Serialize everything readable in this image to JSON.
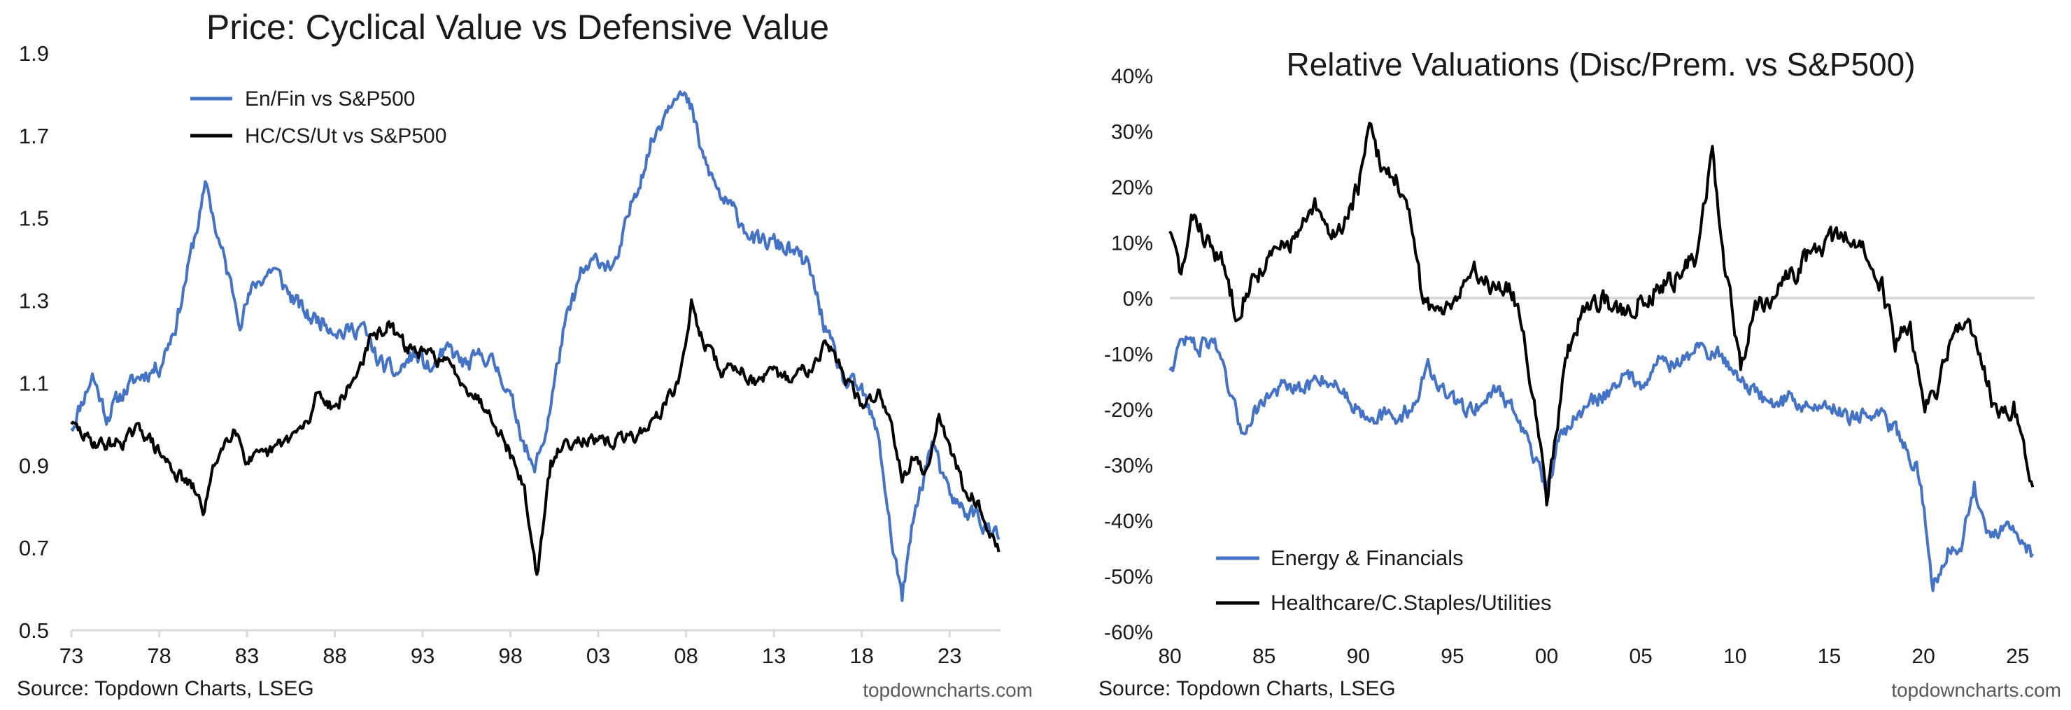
{
  "colors": {
    "blue": "#4472C4",
    "black": "#000000",
    "axis": "#D9D9D9",
    "text": "#1A1A1A",
    "muted": "#595959"
  },
  "chart_data": [
    {
      "type": "line",
      "title": "Price: Cyclical Value vs Defensive Value",
      "xlabel": "",
      "ylabel": "",
      "xlim": [
        1973,
        2025.9
      ],
      "ylim": [
        0.5,
        1.9
      ],
      "yticks": [
        0.5,
        0.7,
        0.9,
        1.1,
        1.3,
        1.5,
        1.7,
        1.9
      ],
      "ytick_labels": [
        "0.5",
        "0.7",
        "0.9",
        "1.1",
        "1.3",
        "1.5",
        "1.7",
        "1.9"
      ],
      "xticks": [
        1973,
        1978,
        1983,
        1988,
        1993,
        1998,
        2003,
        2008,
        2013,
        2018,
        2023
      ],
      "xtick_labels": [
        "73",
        "78",
        "83",
        "88",
        "93",
        "98",
        "03",
        "08",
        "13",
        "18",
        "23"
      ],
      "grid": false,
      "legend_position": "top-left",
      "source": "Source: Topdown Charts, LSEG",
      "watermark": "topdowncharts.com",
      "series": [
        {
          "name": "En/Fin vs S&P500",
          "color": "#4472C4",
          "noise": 0.018,
          "seed": 11,
          "points": [
            [
              1973,
              0.99
            ],
            [
              1974.2,
              1.12
            ],
            [
              1975,
              1.02
            ],
            [
              1976,
              1.08
            ],
            [
              1977,
              1.12
            ],
            [
              1978,
              1.14
            ],
            [
              1979,
              1.25
            ],
            [
              1980,
              1.45
            ],
            [
              1980.7,
              1.58
            ],
            [
              1981.3,
              1.46
            ],
            [
              1982,
              1.35
            ],
            [
              1982.6,
              1.26
            ],
            [
              1983.5,
              1.34
            ],
            [
              1984.5,
              1.38
            ],
            [
              1985.5,
              1.31
            ],
            [
              1986.5,
              1.26
            ],
            [
              1987.5,
              1.25
            ],
            [
              1988.5,
              1.22
            ],
            [
              1989.5,
              1.24
            ],
            [
              1990.5,
              1.15
            ],
            [
              1991.5,
              1.12
            ],
            [
              1992.5,
              1.17
            ],
            [
              1993.5,
              1.13
            ],
            [
              1994.5,
              1.18
            ],
            [
              1995.5,
              1.14
            ],
            [
              1996.5,
              1.17
            ],
            [
              1997.5,
              1.12
            ],
            [
              1998.5,
              1.0
            ],
            [
              1999.3,
              0.88
            ],
            [
              2000,
              0.98
            ],
            [
              2001,
              1.22
            ],
            [
              2002,
              1.36
            ],
            [
              2003,
              1.4
            ],
            [
              2004,
              1.38
            ],
            [
              2005,
              1.55
            ],
            [
              2006,
              1.68
            ],
            [
              2007,
              1.78
            ],
            [
              2007.5,
              1.82
            ],
            [
              2008.3,
              1.76
            ],
            [
              2009,
              1.64
            ],
            [
              2010,
              1.55
            ],
            [
              2011,
              1.5
            ],
            [
              2012,
              1.44
            ],
            [
              2013,
              1.44
            ],
            [
              2014,
              1.42
            ],
            [
              2015,
              1.38
            ],
            [
              2016,
              1.22
            ],
            [
              2017,
              1.1
            ],
            [
              2018,
              1.08
            ],
            [
              2019,
              0.96
            ],
            [
              2019.7,
              0.72
            ],
            [
              2020.3,
              0.58
            ],
            [
              2021,
              0.78
            ],
            [
              2022,
              0.96
            ],
            [
              2022.7,
              0.85
            ],
            [
              2023.5,
              0.8
            ],
            [
              2024.5,
              0.78
            ],
            [
              2025.3,
              0.74
            ],
            [
              2025.8,
              0.72
            ]
          ]
        },
        {
          "name": "HC/CS/Ut vs S&P500",
          "color": "#000000",
          "noise": 0.014,
          "seed": 29,
          "points": [
            [
              1973,
              1.0
            ],
            [
              1974,
              0.96
            ],
            [
              1975,
              0.95
            ],
            [
              1976,
              0.96
            ],
            [
              1977,
              0.99
            ],
            [
              1978,
              0.93
            ],
            [
              1979,
              0.88
            ],
            [
              1980,
              0.84
            ],
            [
              1980.5,
              0.79
            ],
            [
              1981.3,
              0.92
            ],
            [
              1982.3,
              1.0
            ],
            [
              1983,
              0.91
            ],
            [
              1984,
              0.92
            ],
            [
              1985.5,
              0.97
            ],
            [
              1986.5,
              1.0
            ],
            [
              1987,
              1.08
            ],
            [
              1988,
              1.04
            ],
            [
              1989,
              1.1
            ],
            [
              1990,
              1.2
            ],
            [
              1991,
              1.24
            ],
            [
              1992,
              1.19
            ],
            [
              1993,
              1.17
            ],
            [
              1994,
              1.16
            ],
            [
              1995,
              1.12
            ],
            [
              1996,
              1.07
            ],
            [
              1997,
              1.02
            ],
            [
              1998,
              0.93
            ],
            [
              1998.8,
              0.84
            ],
            [
              1999.5,
              0.63
            ],
            [
              2000.3,
              0.9
            ],
            [
              2001,
              0.95
            ],
            [
              2002,
              0.97
            ],
            [
              2003,
              0.95
            ],
            [
              2004,
              0.96
            ],
            [
              2005,
              0.97
            ],
            [
              2006,
              1.0
            ],
            [
              2007,
              1.06
            ],
            [
              2007.7,
              1.12
            ],
            [
              2008.3,
              1.29
            ],
            [
              2009,
              1.2
            ],
            [
              2010,
              1.13
            ],
            [
              2011,
              1.14
            ],
            [
              2012,
              1.1
            ],
            [
              2013,
              1.12
            ],
            [
              2014,
              1.11
            ],
            [
              2015,
              1.14
            ],
            [
              2016,
              1.2
            ],
            [
              2017,
              1.12
            ],
            [
              2018,
              1.04
            ],
            [
              2019,
              1.08
            ],
            [
              2019.7,
              1.0
            ],
            [
              2020.3,
              0.88
            ],
            [
              2021,
              0.92
            ],
            [
              2021.7,
              0.88
            ],
            [
              2022.4,
              1.03
            ],
            [
              2023,
              0.94
            ],
            [
              2023.7,
              0.86
            ],
            [
              2024.5,
              0.82
            ],
            [
              2025.2,
              0.75
            ],
            [
              2025.8,
              0.69
            ]
          ]
        }
      ]
    },
    {
      "type": "line",
      "title": "Relative Valuations (Disc/Prem. vs S&P500)",
      "xlabel": "",
      "ylabel": "",
      "xlim": [
        1980,
        2025.9
      ],
      "ylim": [
        -60,
        40
      ],
      "yticks": [
        -60,
        -50,
        -40,
        -30,
        -20,
        -10,
        0,
        10,
        20,
        30,
        40
      ],
      "ytick_labels": [
        "-60%",
        "-50%",
        "-40%",
        "-30%",
        "-20%",
        "-10%",
        "0%",
        "10%",
        "20%",
        "30%",
        "40%"
      ],
      "xticks": [
        1980,
        1985,
        1990,
        1995,
        2000,
        2005,
        2010,
        2015,
        2020,
        2025
      ],
      "xtick_labels": [
        "80",
        "85",
        "90",
        "95",
        "00",
        "05",
        "10",
        "15",
        "20",
        "25"
      ],
      "zero_line": 0,
      "grid": false,
      "legend_position": "bottom-left",
      "source": "Source: Topdown Charts, LSEG",
      "watermark": "topdowncharts.com",
      "series": [
        {
          "name": "Energy & Financials",
          "color": "#4472C4",
          "noise": 1.3,
          "seed": 47,
          "points": [
            [
              1980,
              -13
            ],
            [
              1980.7,
              -7
            ],
            [
              1981.5,
              -9
            ],
            [
              1982.3,
              -7
            ],
            [
              1983.2,
              -18
            ],
            [
              1983.8,
              -24
            ],
            [
              1985,
              -18
            ],
            [
              1986,
              -16
            ],
            [
              1987,
              -17
            ],
            [
              1988,
              -14
            ],
            [
              1989,
              -16
            ],
            [
              1990,
              -20
            ],
            [
              1991,
              -21
            ],
            [
              1992,
              -22
            ],
            [
              1993,
              -19
            ],
            [
              1993.7,
              -12
            ],
            [
              1994.5,
              -17
            ],
            [
              1995.5,
              -20
            ],
            [
              1996.5,
              -19
            ],
            [
              1997.5,
              -16
            ],
            [
              1998.5,
              -22
            ],
            [
              1999.3,
              -28
            ],
            [
              2000,
              -36
            ],
            [
              2000.7,
              -24
            ],
            [
              2001.5,
              -22
            ],
            [
              2002.3,
              -19
            ],
            [
              2003.2,
              -17
            ],
            [
              2004,
              -14
            ],
            [
              2005,
              -15
            ],
            [
              2006,
              -11
            ],
            [
              2007,
              -12
            ],
            [
              2008,
              -9
            ],
            [
              2009,
              -10
            ],
            [
              2010,
              -13
            ],
            [
              2011,
              -17
            ],
            [
              2012,
              -19
            ],
            [
              2013,
              -18
            ],
            [
              2014,
              -20
            ],
            [
              2015,
              -19
            ],
            [
              2016,
              -21
            ],
            [
              2017,
              -21
            ],
            [
              2018,
              -22
            ],
            [
              2019,
              -26
            ],
            [
              2019.8,
              -32
            ],
            [
              2020.5,
              -52
            ],
            [
              2021.3,
              -45
            ],
            [
              2022,
              -44
            ],
            [
              2022.7,
              -34
            ],
            [
              2023.5,
              -43
            ],
            [
              2024.5,
              -42
            ],
            [
              2025.3,
              -44
            ],
            [
              2025.8,
              -46
            ]
          ]
        },
        {
          "name": "Healthcare/C.Staples/Utilities",
          "color": "#000000",
          "noise": 1.6,
          "seed": 83,
          "points": [
            [
              1980,
              12
            ],
            [
              1980.6,
              4
            ],
            [
              1981.3,
              15
            ],
            [
              1982,
              10
            ],
            [
              1982.8,
              6
            ],
            [
              1983.5,
              -2
            ],
            [
              1984.3,
              3
            ],
            [
              1985,
              6
            ],
            [
              1986,
              9
            ],
            [
              1987,
              12
            ],
            [
              1987.7,
              16
            ],
            [
              1988.5,
              11
            ],
            [
              1989.3,
              14
            ],
            [
              1990,
              20
            ],
            [
              1990.6,
              30
            ],
            [
              1991.2,
              24
            ],
            [
              1992,
              22
            ],
            [
              1992.7,
              14
            ],
            [
              1993.3,
              2
            ],
            [
              1994,
              -3
            ],
            [
              1995,
              0
            ],
            [
              1996,
              5
            ],
            [
              1997,
              3
            ],
            [
              1998,
              2
            ],
            [
              1998.7,
              -4
            ],
            [
              1999.5,
              -22
            ],
            [
              2000,
              -36
            ],
            [
              2000.5,
              -24
            ],
            [
              2001,
              -10
            ],
            [
              2002,
              -2
            ],
            [
              2003,
              0
            ],
            [
              2004,
              -3
            ],
            [
              2005,
              0
            ],
            [
              2006,
              2
            ],
            [
              2007,
              4
            ],
            [
              2008,
              8
            ],
            [
              2008.8,
              26
            ],
            [
              2009.5,
              4
            ],
            [
              2010.3,
              -12
            ],
            [
              2011,
              -2
            ],
            [
              2012,
              1
            ],
            [
              2013,
              4
            ],
            [
              2014,
              8
            ],
            [
              2015,
              10
            ],
            [
              2016,
              11
            ],
            [
              2017,
              8
            ],
            [
              2017.8,
              2
            ],
            [
              2018.5,
              -8
            ],
            [
              2019.3,
              -4
            ],
            [
              2020,
              -20
            ],
            [
              2020.7,
              -16
            ],
            [
              2021.5,
              -7
            ],
            [
              2022.3,
              -2
            ],
            [
              2023,
              -12
            ],
            [
              2024,
              -22
            ],
            [
              2024.8,
              -20
            ],
            [
              2025.4,
              -30
            ],
            [
              2025.8,
              -34
            ]
          ]
        }
      ]
    }
  ]
}
